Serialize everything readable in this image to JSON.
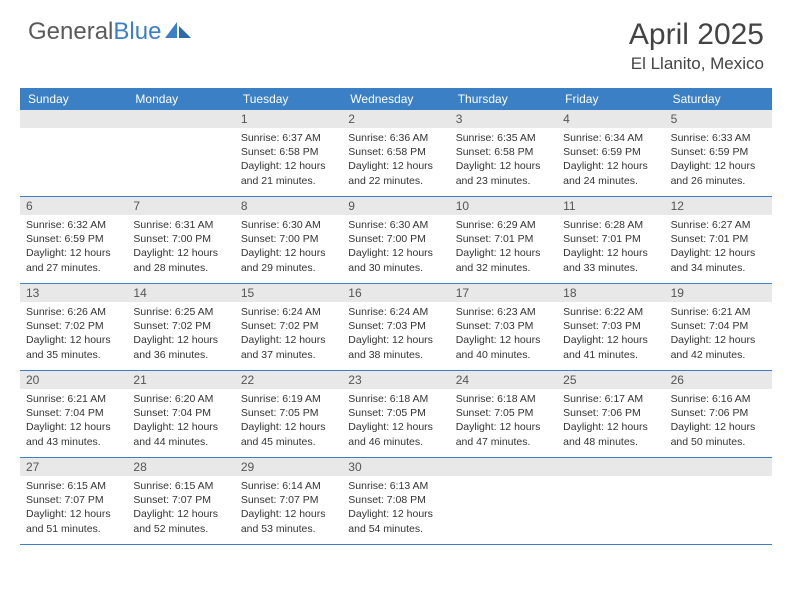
{
  "brand": {
    "left": "General",
    "right": "Blue"
  },
  "title": "April 2025",
  "location": "El Llanito, Mexico",
  "colors": {
    "accent": "#3b7fc4",
    "headerText": "#ffffff",
    "numBg": "#e8e8e8",
    "bodyText": "#333333",
    "titleText": "#444444"
  },
  "dayNames": [
    "Sunday",
    "Monday",
    "Tuesday",
    "Wednesday",
    "Thursday",
    "Friday",
    "Saturday"
  ],
  "weeks": [
    [
      {
        "n": "",
        "sunrise": "",
        "sunset": "",
        "day": ""
      },
      {
        "n": "",
        "sunrise": "",
        "sunset": "",
        "day": ""
      },
      {
        "n": "1",
        "sunrise": "Sunrise: 6:37 AM",
        "sunset": "Sunset: 6:58 PM",
        "day": "Daylight: 12 hours and 21 minutes."
      },
      {
        "n": "2",
        "sunrise": "Sunrise: 6:36 AM",
        "sunset": "Sunset: 6:58 PM",
        "day": "Daylight: 12 hours and 22 minutes."
      },
      {
        "n": "3",
        "sunrise": "Sunrise: 6:35 AM",
        "sunset": "Sunset: 6:58 PM",
        "day": "Daylight: 12 hours and 23 minutes."
      },
      {
        "n": "4",
        "sunrise": "Sunrise: 6:34 AM",
        "sunset": "Sunset: 6:59 PM",
        "day": "Daylight: 12 hours and 24 minutes."
      },
      {
        "n": "5",
        "sunrise": "Sunrise: 6:33 AM",
        "sunset": "Sunset: 6:59 PM",
        "day": "Daylight: 12 hours and 26 minutes."
      }
    ],
    [
      {
        "n": "6",
        "sunrise": "Sunrise: 6:32 AM",
        "sunset": "Sunset: 6:59 PM",
        "day": "Daylight: 12 hours and 27 minutes."
      },
      {
        "n": "7",
        "sunrise": "Sunrise: 6:31 AM",
        "sunset": "Sunset: 7:00 PM",
        "day": "Daylight: 12 hours and 28 minutes."
      },
      {
        "n": "8",
        "sunrise": "Sunrise: 6:30 AM",
        "sunset": "Sunset: 7:00 PM",
        "day": "Daylight: 12 hours and 29 minutes."
      },
      {
        "n": "9",
        "sunrise": "Sunrise: 6:30 AM",
        "sunset": "Sunset: 7:00 PM",
        "day": "Daylight: 12 hours and 30 minutes."
      },
      {
        "n": "10",
        "sunrise": "Sunrise: 6:29 AM",
        "sunset": "Sunset: 7:01 PM",
        "day": "Daylight: 12 hours and 32 minutes."
      },
      {
        "n": "11",
        "sunrise": "Sunrise: 6:28 AM",
        "sunset": "Sunset: 7:01 PM",
        "day": "Daylight: 12 hours and 33 minutes."
      },
      {
        "n": "12",
        "sunrise": "Sunrise: 6:27 AM",
        "sunset": "Sunset: 7:01 PM",
        "day": "Daylight: 12 hours and 34 minutes."
      }
    ],
    [
      {
        "n": "13",
        "sunrise": "Sunrise: 6:26 AM",
        "sunset": "Sunset: 7:02 PM",
        "day": "Daylight: 12 hours and 35 minutes."
      },
      {
        "n": "14",
        "sunrise": "Sunrise: 6:25 AM",
        "sunset": "Sunset: 7:02 PM",
        "day": "Daylight: 12 hours and 36 minutes."
      },
      {
        "n": "15",
        "sunrise": "Sunrise: 6:24 AM",
        "sunset": "Sunset: 7:02 PM",
        "day": "Daylight: 12 hours and 37 minutes."
      },
      {
        "n": "16",
        "sunrise": "Sunrise: 6:24 AM",
        "sunset": "Sunset: 7:03 PM",
        "day": "Daylight: 12 hours and 38 minutes."
      },
      {
        "n": "17",
        "sunrise": "Sunrise: 6:23 AM",
        "sunset": "Sunset: 7:03 PM",
        "day": "Daylight: 12 hours and 40 minutes."
      },
      {
        "n": "18",
        "sunrise": "Sunrise: 6:22 AM",
        "sunset": "Sunset: 7:03 PM",
        "day": "Daylight: 12 hours and 41 minutes."
      },
      {
        "n": "19",
        "sunrise": "Sunrise: 6:21 AM",
        "sunset": "Sunset: 7:04 PM",
        "day": "Daylight: 12 hours and 42 minutes."
      }
    ],
    [
      {
        "n": "20",
        "sunrise": "Sunrise: 6:21 AM",
        "sunset": "Sunset: 7:04 PM",
        "day": "Daylight: 12 hours and 43 minutes."
      },
      {
        "n": "21",
        "sunrise": "Sunrise: 6:20 AM",
        "sunset": "Sunset: 7:04 PM",
        "day": "Daylight: 12 hours and 44 minutes."
      },
      {
        "n": "22",
        "sunrise": "Sunrise: 6:19 AM",
        "sunset": "Sunset: 7:05 PM",
        "day": "Daylight: 12 hours and 45 minutes."
      },
      {
        "n": "23",
        "sunrise": "Sunrise: 6:18 AM",
        "sunset": "Sunset: 7:05 PM",
        "day": "Daylight: 12 hours and 46 minutes."
      },
      {
        "n": "24",
        "sunrise": "Sunrise: 6:18 AM",
        "sunset": "Sunset: 7:05 PM",
        "day": "Daylight: 12 hours and 47 minutes."
      },
      {
        "n": "25",
        "sunrise": "Sunrise: 6:17 AM",
        "sunset": "Sunset: 7:06 PM",
        "day": "Daylight: 12 hours and 48 minutes."
      },
      {
        "n": "26",
        "sunrise": "Sunrise: 6:16 AM",
        "sunset": "Sunset: 7:06 PM",
        "day": "Daylight: 12 hours and 50 minutes."
      }
    ],
    [
      {
        "n": "27",
        "sunrise": "Sunrise: 6:15 AM",
        "sunset": "Sunset: 7:07 PM",
        "day": "Daylight: 12 hours and 51 minutes."
      },
      {
        "n": "28",
        "sunrise": "Sunrise: 6:15 AM",
        "sunset": "Sunset: 7:07 PM",
        "day": "Daylight: 12 hours and 52 minutes."
      },
      {
        "n": "29",
        "sunrise": "Sunrise: 6:14 AM",
        "sunset": "Sunset: 7:07 PM",
        "day": "Daylight: 12 hours and 53 minutes."
      },
      {
        "n": "30",
        "sunrise": "Sunrise: 6:13 AM",
        "sunset": "Sunset: 7:08 PM",
        "day": "Daylight: 12 hours and 54 minutes."
      },
      {
        "n": "",
        "sunrise": "",
        "sunset": "",
        "day": ""
      },
      {
        "n": "",
        "sunrise": "",
        "sunset": "",
        "day": ""
      },
      {
        "n": "",
        "sunrise": "",
        "sunset": "",
        "day": ""
      }
    ]
  ]
}
